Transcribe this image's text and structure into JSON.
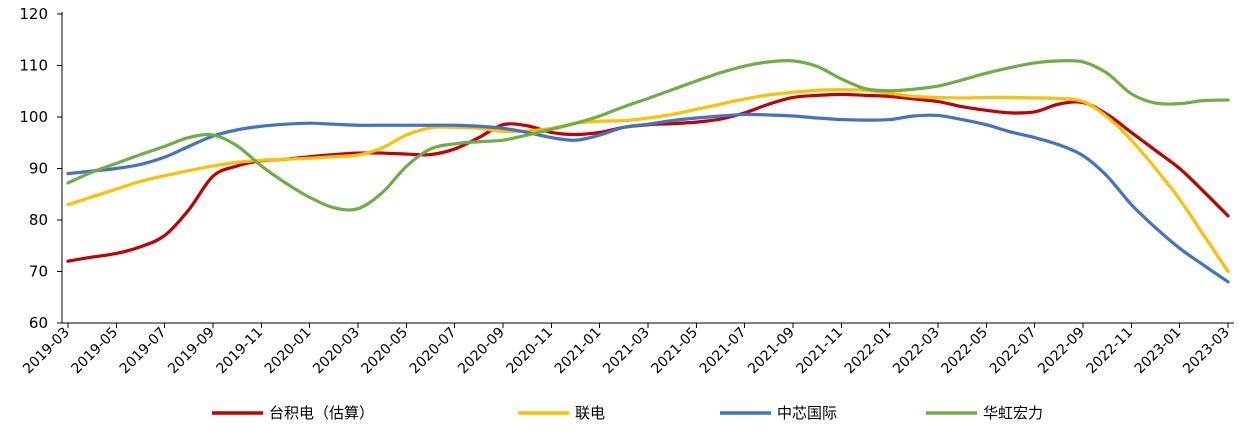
{
  "chart_data": {
    "type": "line",
    "title": "",
    "xlabel": "",
    "ylabel": "",
    "ylim": [
      60,
      120
    ],
    "yticks": [
      60,
      70,
      80,
      90,
      100,
      110,
      120
    ],
    "grid": false,
    "legend_position": "bottom",
    "x": [
      "2019-03",
      "2019-04",
      "2019-05",
      "2019-06",
      "2019-07",
      "2019-08",
      "2019-09",
      "2019-10",
      "2019-11",
      "2019-12",
      "2020-01",
      "2020-02",
      "2020-03",
      "2020-04",
      "2020-05",
      "2020-06",
      "2020-07",
      "2020-08",
      "2020-09",
      "2020-10",
      "2020-11",
      "2020-12",
      "2021-01",
      "2021-02",
      "2021-03",
      "2021-04",
      "2021-05",
      "2021-06",
      "2021-07",
      "2021-08",
      "2021-09",
      "2021-10",
      "2021-11",
      "2021-12",
      "2022-01",
      "2022-02",
      "2022-03",
      "2022-04",
      "2022-05",
      "2022-06",
      "2022-07",
      "2022-08",
      "2022-09",
      "2022-10",
      "2022-11",
      "2022-12",
      "2023-01",
      "2023-02",
      "2023-03"
    ],
    "xticks": [
      "2019-03",
      "2019-05",
      "2019-07",
      "2019-09",
      "2019-11",
      "2020-01",
      "2020-03",
      "2020-05",
      "2020-07",
      "2020-09",
      "2020-11",
      "2021-01",
      "2021-03",
      "2021-05",
      "2021-07",
      "2021-09",
      "2021-11",
      "2022-01",
      "2022-03",
      "2022-05",
      "2022-07",
      "2022-09",
      "2022-11",
      "2023-01",
      "2023-03"
    ],
    "series": [
      {
        "name": "台积电（估算）",
        "color": "#C00000",
        "values": [
          72,
          72.8,
          73.5,
          74.8,
          77,
          82,
          88.5,
          90.5,
          91.5,
          91.8,
          92.3,
          92.7,
          93,
          93,
          92.8,
          92.7,
          93.8,
          96,
          98.5,
          98.3,
          97,
          96.6,
          97,
          98,
          98.5,
          98.7,
          99,
          99.6,
          100.8,
          102.5,
          103.8,
          104.2,
          104.4,
          104.2,
          104,
          103.5,
          103,
          102,
          101.3,
          100.8,
          101,
          102.5,
          102.8,
          100.5,
          97,
          93.5,
          90,
          85.5,
          80.8
        ]
      },
      {
        "name": "联电",
        "color": "#FFC000",
        "values": [
          83,
          84.5,
          86,
          87.5,
          88.6,
          89.6,
          90.5,
          91.2,
          91.6,
          91.8,
          92,
          92.3,
          92.6,
          94,
          96.5,
          97.9,
          98,
          97.8,
          97.2,
          97.3,
          97.8,
          98.8,
          99.2,
          99.3,
          99.8,
          100.5,
          101.5,
          102.5,
          103.5,
          104.3,
          104.8,
          105.2,
          105.3,
          105.2,
          104.6,
          104,
          103.8,
          103.7,
          103.8,
          103.8,
          103.7,
          103.6,
          103,
          100,
          95.5,
          90,
          84,
          77,
          70
        ]
      },
      {
        "name": "中芯国际",
        "color": "#4472C4",
        "values": [
          89,
          89.5,
          90,
          90.8,
          92.2,
          94.3,
          96.3,
          97.5,
          98.2,
          98.6,
          98.8,
          98.6,
          98.4,
          98.4,
          98.4,
          98.4,
          98.4,
          98.2,
          97.8,
          97,
          96,
          95.5,
          96.5,
          98,
          98.6,
          99.3,
          99.8,
          100.2,
          100.5,
          100.4,
          100.2,
          99.8,
          99.5,
          99.4,
          99.5,
          100.2,
          100.3,
          99.5,
          98.5,
          97.1,
          96,
          94.6,
          92.5,
          88.5,
          83,
          78.5,
          74.5,
          71.2,
          68
        ]
      },
      {
        "name": "华虹宏力",
        "color": "#70AD47",
        "values": [
          87.2,
          89.3,
          91,
          92.7,
          94.3,
          96,
          96.5,
          94.4,
          90.5,
          87.2,
          84.4,
          82.4,
          82.2,
          85.3,
          90.4,
          93.8,
          94.8,
          95.2,
          95.5,
          96.5,
          97.6,
          98.8,
          100.2,
          102,
          103.6,
          105.3,
          107,
          108.6,
          109.9,
          110.7,
          110.9,
          109.8,
          107.4,
          105.5,
          105.1,
          105.4,
          106,
          107.2,
          108.5,
          109.6,
          110.5,
          110.9,
          110.7,
          108.5,
          104.5,
          102.7,
          102.6,
          103.2,
          103.3
        ]
      }
    ]
  }
}
